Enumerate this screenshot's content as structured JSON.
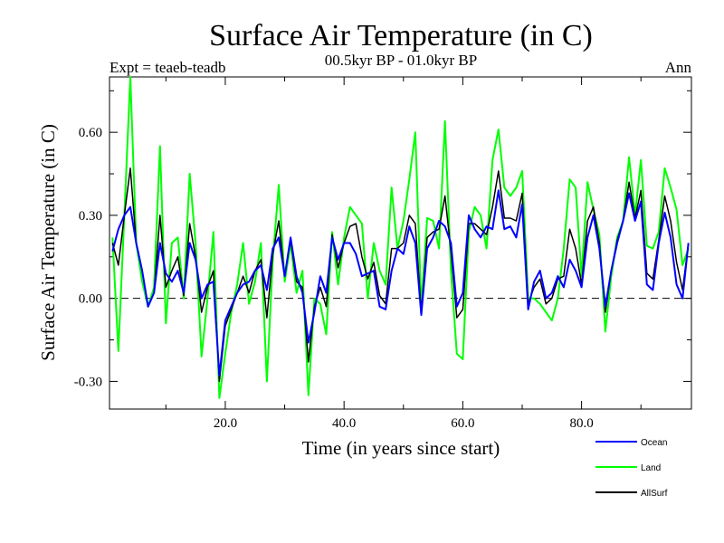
{
  "chart_data": {
    "type": "line",
    "title": "Surface Air Temperature (in C)",
    "subtitle": "00.5kyr BP - 01.0kyr BP",
    "experiment_label": "Expt = teaeb-teadb",
    "season_label": "Ann",
    "xlabel": "Time (in years since start)",
    "ylabel": "Surface Air Temperature (in C)",
    "xlim": [
      0.5,
      98.5
    ],
    "ylim": [
      -0.4,
      0.8
    ],
    "x_ticks": [
      20,
      40,
      60,
      80
    ],
    "x_tick_labels": [
      "20.0",
      "40.0",
      "60.0",
      "80.0"
    ],
    "y_ticks": [
      -0.3,
      0.0,
      0.3,
      0.6
    ],
    "y_tick_labels": [
      "-0.30",
      "0.00",
      "0.30",
      "0.60"
    ],
    "zero_line": true,
    "x": [
      1,
      2,
      3,
      4,
      5,
      6,
      7,
      8,
      9,
      10,
      11,
      12,
      13,
      14,
      15,
      16,
      17,
      18,
      19,
      20,
      21,
      22,
      23,
      24,
      25,
      26,
      27,
      28,
      29,
      30,
      31,
      32,
      33,
      34,
      35,
      36,
      37,
      38,
      39,
      40,
      41,
      42,
      43,
      44,
      45,
      46,
      47,
      48,
      49,
      50,
      51,
      52,
      53,
      54,
      55,
      56,
      57,
      58,
      59,
      60,
      61,
      62,
      63,
      64,
      65,
      66,
      67,
      68,
      69,
      70,
      71,
      72,
      73,
      74,
      75,
      76,
      77,
      78,
      79,
      80,
      81,
      82,
      83,
      84,
      85,
      86,
      87,
      88,
      89,
      90,
      91,
      92,
      93,
      94,
      95,
      96,
      97,
      98
    ],
    "series": [
      {
        "name": "Ocean",
        "color": "#0000ff",
        "values": [
          0.17,
          0.25,
          0.3,
          0.33,
          0.2,
          0.1,
          -0.03,
          0.02,
          0.2,
          0.09,
          0.06,
          0.1,
          0.02,
          0.2,
          0.14,
          0.0,
          0.05,
          0.06,
          -0.28,
          -0.08,
          -0.03,
          0.02,
          0.05,
          0.06,
          0.1,
          0.12,
          0.03,
          0.18,
          0.22,
          0.08,
          0.22,
          0.08,
          0.02,
          -0.16,
          -0.05,
          0.08,
          0.02,
          0.22,
          0.14,
          0.2,
          0.2,
          0.16,
          0.08,
          0.09,
          0.1,
          -0.03,
          -0.04,
          0.1,
          0.18,
          0.16,
          0.26,
          0.2,
          -0.06,
          0.18,
          0.22,
          0.28,
          0.26,
          0.2,
          -0.03,
          0.02,
          0.3,
          0.25,
          0.22,
          0.26,
          0.25,
          0.39,
          0.25,
          0.26,
          0.22,
          0.34,
          -0.04,
          0.06,
          0.1,
          0.0,
          0.02,
          0.08,
          0.04,
          0.14,
          0.1,
          0.04,
          0.22,
          0.3,
          0.18,
          -0.03,
          0.1,
          0.2,
          0.28,
          0.38,
          0.28,
          0.35,
          0.05,
          0.03,
          0.2,
          0.31,
          0.22,
          0.05,
          0.0,
          0.2
        ]
      },
      {
        "name": "Land",
        "color": "#00ff00",
        "values": [
          0.22,
          -0.19,
          0.3,
          0.8,
          0.2,
          0.06,
          -0.03,
          0.04,
          0.55,
          -0.09,
          0.2,
          0.22,
          0.0,
          0.45,
          0.2,
          -0.21,
          0.0,
          0.24,
          -0.36,
          -0.2,
          -0.05,
          0.05,
          0.2,
          -0.02,
          0.06,
          0.2,
          -0.3,
          0.14,
          0.41,
          0.06,
          0.2,
          0.02,
          0.1,
          -0.35,
          0.0,
          -0.02,
          -0.13,
          0.24,
          0.05,
          0.22,
          0.33,
          0.3,
          0.27,
          0.0,
          0.2,
          0.1,
          0.05,
          0.4,
          0.18,
          0.28,
          0.43,
          0.6,
          -0.03,
          0.29,
          0.28,
          0.18,
          0.64,
          0.1,
          -0.2,
          -0.22,
          0.24,
          0.33,
          0.3,
          0.18,
          0.5,
          0.61,
          0.4,
          0.37,
          0.4,
          0.46,
          0.0,
          0.0,
          -0.02,
          -0.05,
          -0.08,
          0.0,
          0.18,
          0.43,
          0.4,
          0.08,
          0.42,
          0.32,
          0.23,
          -0.12,
          0.08,
          0.22,
          0.28,
          0.51,
          0.3,
          0.5,
          0.19,
          0.18,
          0.24,
          0.47,
          0.4,
          0.32,
          0.12,
          0.18
        ]
      },
      {
        "name": "AllSurf",
        "color": "#000000",
        "values": [
          0.2,
          0.12,
          0.3,
          0.47,
          0.2,
          0.1,
          -0.03,
          0.02,
          0.3,
          0.04,
          0.1,
          0.15,
          0.01,
          0.27,
          0.15,
          -0.05,
          0.04,
          0.1,
          -0.3,
          -0.1,
          -0.04,
          0.02,
          0.08,
          0.02,
          0.1,
          0.14,
          -0.07,
          0.16,
          0.28,
          0.08,
          0.21,
          0.06,
          0.04,
          -0.23,
          -0.03,
          0.04,
          -0.03,
          0.23,
          0.11,
          0.2,
          0.26,
          0.27,
          0.15,
          0.07,
          0.13,
          0.01,
          -0.02,
          0.18,
          0.18,
          0.2,
          0.3,
          0.27,
          -0.05,
          0.22,
          0.24,
          0.25,
          0.37,
          0.17,
          -0.07,
          -0.04,
          0.27,
          0.27,
          0.25,
          0.23,
          0.33,
          0.46,
          0.29,
          0.29,
          0.28,
          0.38,
          -0.02,
          0.04,
          0.07,
          -0.02,
          0.0,
          0.07,
          0.08,
          0.25,
          0.18,
          0.05,
          0.28,
          0.33,
          0.2,
          -0.05,
          0.1,
          0.21,
          0.28,
          0.42,
          0.29,
          0.39,
          0.09,
          0.07,
          0.21,
          0.37,
          0.28,
          0.13,
          0.03,
          0.2
        ]
      }
    ],
    "legend": {
      "placement": "bottom-right, outside plot",
      "entries": [
        "Ocean",
        "Land",
        "AllSurf"
      ]
    }
  }
}
